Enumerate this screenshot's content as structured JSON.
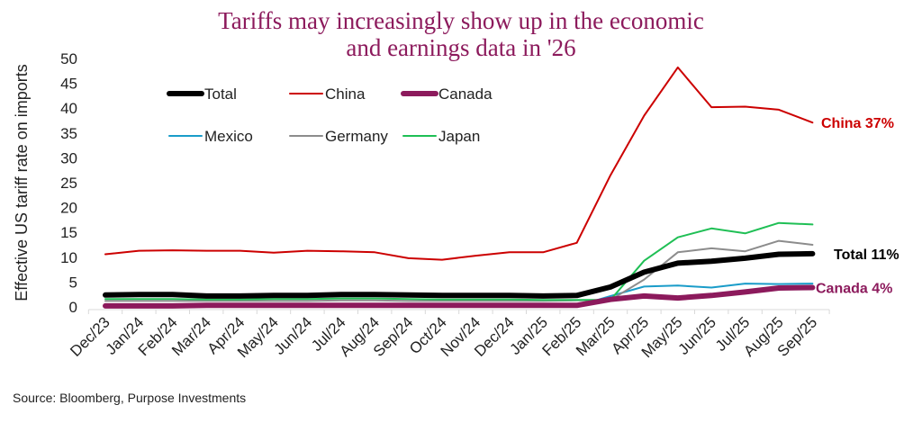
{
  "title_line1": "Tariffs may increasingly show up in the economic",
  "title_line2": "and earnings data in '26",
  "source": "Source: Bloomberg, Purpose Investments",
  "chart_data": {
    "type": "line",
    "title": "Tariffs may increasingly show up in the economic and earnings data in '26",
    "xlabel": "",
    "ylabel": "Effective US tariff rate on imports",
    "ylim": [
      0,
      50
    ],
    "yticks": [
      0,
      5,
      10,
      15,
      20,
      25,
      30,
      35,
      40,
      45,
      50
    ],
    "grid": false,
    "legend_placement": "top-left",
    "categories": [
      "Dec/23",
      "Jan/24",
      "Feb/24",
      "Mar/24",
      "Apr/24",
      "May/24",
      "Jun/24",
      "Jul/24",
      "Aug/24",
      "Sep/24",
      "Oct/24",
      "Nov/24",
      "Dec/24",
      "Jan/25",
      "Feb/25",
      "Mar/25",
      "Apr/25",
      "May/25",
      "Jun/25",
      "Jul/25",
      "Aug/25",
      "Sep/25"
    ],
    "series": [
      {
        "name": "Total",
        "color": "#000000",
        "width": 6,
        "values": [
          2.4,
          2.5,
          2.5,
          2.2,
          2.2,
          2.3,
          2.3,
          2.5,
          2.5,
          2.4,
          2.3,
          2.3,
          2.3,
          2.2,
          2.3,
          4.0,
          7.0,
          8.8,
          9.2,
          9.8,
          10.6,
          10.7
        ]
      },
      {
        "name": "China",
        "color": "#cc0000",
        "width": 2,
        "values": [
          10.6,
          11.3,
          11.4,
          11.3,
          11.3,
          10.9,
          11.3,
          11.2,
          11.0,
          9.8,
          9.5,
          10.3,
          11.0,
          11.0,
          12.9,
          26.5,
          38.5,
          48.2,
          40.2,
          40.3,
          39.7,
          37.1
        ]
      },
      {
        "name": "Canada",
        "color": "#8c1a5c",
        "width": 6,
        "values": [
          0.2,
          0.2,
          0.2,
          0.3,
          0.3,
          0.3,
          0.3,
          0.3,
          0.3,
          0.3,
          0.3,
          0.3,
          0.3,
          0.3,
          0.3,
          1.5,
          2.2,
          1.8,
          2.3,
          3.0,
          3.8,
          3.9
        ]
      },
      {
        "name": "Mexico",
        "color": "#1a9cc9",
        "width": 2,
        "values": [
          0.2,
          0.2,
          0.2,
          0.2,
          0.2,
          0.2,
          0.2,
          0.2,
          0.2,
          0.2,
          0.2,
          0.2,
          0.2,
          0.2,
          0.2,
          2.2,
          4.1,
          4.3,
          3.9,
          4.7,
          4.6,
          4.7
        ]
      },
      {
        "name": "Germany",
        "color": "#8c8c8c",
        "width": 2,
        "values": [
          1.2,
          1.2,
          1.2,
          1.2,
          1.2,
          1.2,
          1.2,
          1.3,
          1.3,
          1.2,
          1.2,
          1.2,
          1.2,
          1.2,
          1.3,
          1.4,
          5.5,
          11.0,
          11.8,
          11.2,
          13.3,
          12.5
        ]
      },
      {
        "name": "Japan",
        "color": "#1fbf55",
        "width": 2,
        "values": [
          1.6,
          1.6,
          1.6,
          1.5,
          1.5,
          1.6,
          1.6,
          1.7,
          1.7,
          1.6,
          1.5,
          1.5,
          1.5,
          1.4,
          1.4,
          1.4,
          9.3,
          14.0,
          15.8,
          14.8,
          16.9,
          16.6
        ]
      }
    ],
    "annotations": [
      {
        "text": "China 37%",
        "series": "China",
        "color": "#cc0000"
      },
      {
        "text": "Total 11%",
        "series": "Total",
        "color": "#000000"
      },
      {
        "text": "Canada 4%",
        "series": "Canada",
        "color": "#8c1a5c"
      }
    ]
  }
}
